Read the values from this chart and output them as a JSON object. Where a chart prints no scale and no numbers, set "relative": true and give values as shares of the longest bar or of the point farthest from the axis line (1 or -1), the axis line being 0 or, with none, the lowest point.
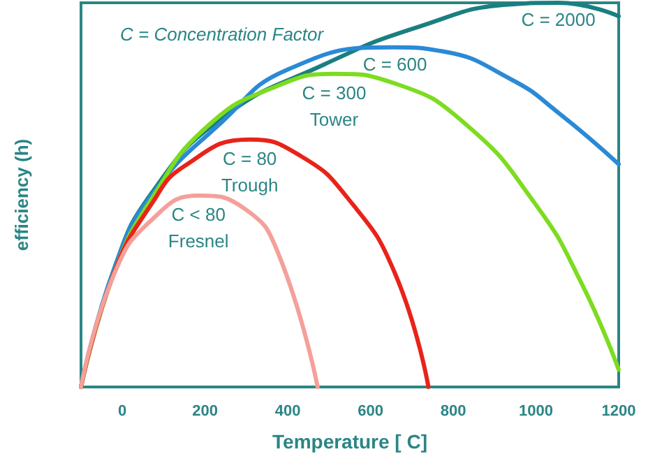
{
  "chart_data": {
    "type": "line",
    "relative": true,
    "xlabel": "Temperature [ C]",
    "ylabel": "efficiency (h)",
    "xlim": [
      -100,
      1200
    ],
    "xticks": [
      0,
      200,
      400,
      600,
      800,
      1000,
      1200
    ],
    "grid": false,
    "marker": "none",
    "line_style": "solid",
    "annotations": [
      "C = Concentration Factor"
    ],
    "series": [
      {
        "name": "C = 2000",
        "color": "#1a7f80",
        "x": [
          -100,
          -19,
          71,
          241,
          489,
          715,
          941,
          1054,
          1200
        ],
        "values": [
          0,
          0.31,
          0.505,
          0.7,
          0.84,
          0.937,
          0.996,
          1,
          0.965
        ]
      },
      {
        "name": "C = 600",
        "color": "#2a8ad6",
        "x": [
          -100,
          -19,
          71,
          241,
          399,
          659,
          772,
          941,
          1054,
          1200
        ],
        "values": [
          0,
          0.31,
          0.5,
          0.69,
          0.826,
          0.884,
          0.874,
          0.8,
          0.714,
          0.58
        ]
      },
      {
        "name": "C = 300\nTower",
        "color": "#7ddc1f",
        "x": [
          -100,
          -19,
          71,
          207,
          376,
          512,
          659,
          828,
          998,
          1111,
          1200
        ],
        "values": [
          0,
          0.3,
          0.49,
          0.68,
          0.784,
          0.815,
          0.79,
          0.686,
          0.477,
          0.268,
          0.045
        ]
      },
      {
        "name": "C = 80\nTrough",
        "color": "#e8231a",
        "x": [
          -100,
          -19,
          71,
          150,
          308,
          433,
          546,
          659,
          740
        ],
        "values": [
          0,
          0.3,
          0.477,
          0.575,
          0.644,
          0.6,
          0.49,
          0.296,
          0
        ]
      },
      {
        "name": "C < 80\nFresnel",
        "color": "#f4a09a",
        "x": [
          -100,
          -19,
          71,
          184,
          297,
          376,
          472
        ],
        "values": [
          0,
          0.296,
          0.435,
          0.498,
          0.463,
          0.35,
          0
        ]
      }
    ]
  }
}
